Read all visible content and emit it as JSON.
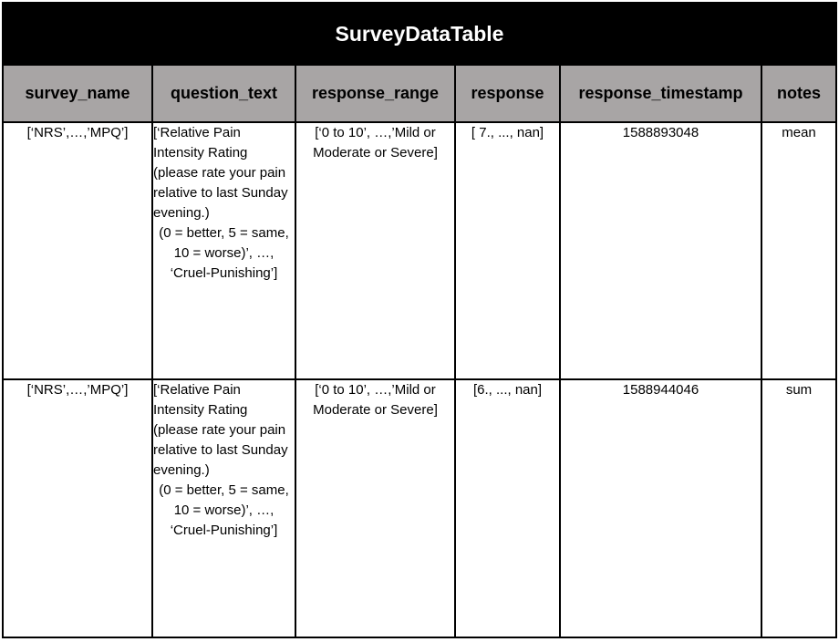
{
  "table": {
    "title": "SurveyDataTable",
    "columns": [
      "survey_name",
      "question_text",
      "response_range",
      "response",
      "response_timestamp",
      "notes"
    ],
    "rows": [
      {
        "survey_name": "[‘NRS’,…,’MPQ’]",
        "question_text_lead": "[‘Relative Pain Intensity Rating (please rate your pain relative to last Sunday evening.)",
        "question_text_rest": "(0 = better, 5 = same, 10 = worse)’, …, ‘Cruel-Punishing’]",
        "response_range": "[‘0 to 10’, …,’Mild or Moderate or Severe]",
        "response": "[ 7., ..., nan]",
        "response_timestamp": "1588893048",
        "notes": "mean"
      },
      {
        "survey_name": "[‘NRS’,…,’MPQ’]",
        "question_text_lead": "[‘Relative Pain Intensity Rating (please rate your pain relative to last Sunday evening.)",
        "question_text_rest": "(0 = better, 5 = same, 10 = worse)’, …, ‘Cruel-Punishing’]",
        "response_range": "[‘0 to 10’, …,’Mild or Moderate or Severe]",
        "response": "[6., ..., nan]",
        "response_timestamp": "1588944046",
        "notes": "sum"
      }
    ]
  }
}
